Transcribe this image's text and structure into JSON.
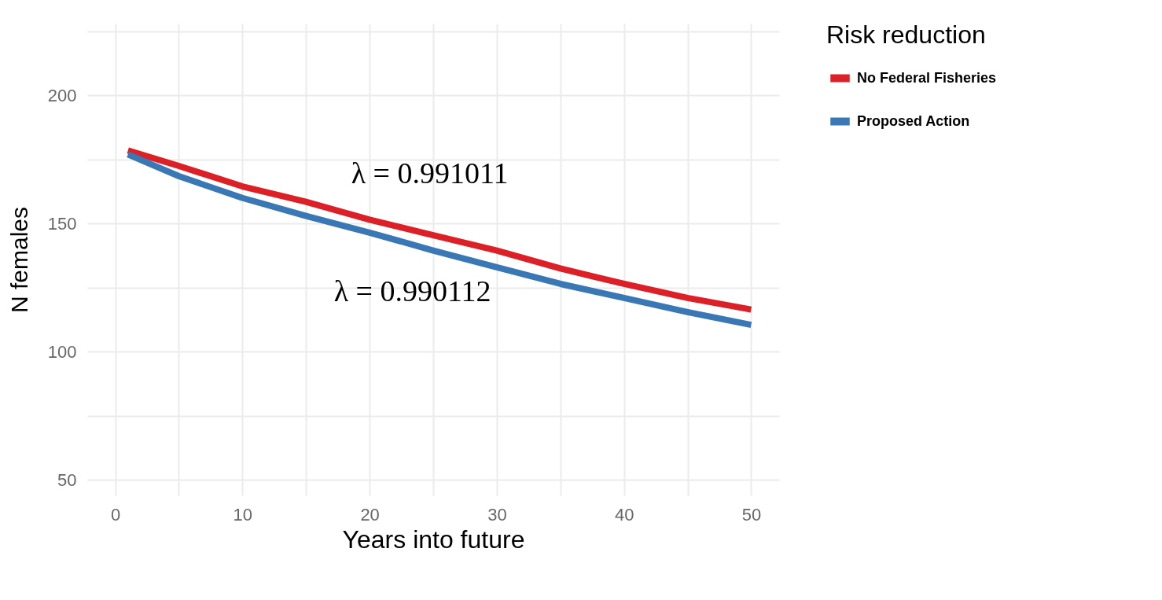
{
  "chart_data": {
    "type": "line",
    "xlabel": "Years into future",
    "ylabel": "N females",
    "legend_title": "Risk reduction",
    "x": [
      1,
      5,
      10,
      15,
      20,
      25,
      30,
      35,
      40,
      45,
      50
    ],
    "series": [
      {
        "name": "No Federal Fisheries",
        "color": "#dc2027",
        "values": [
          178.5,
          172.5,
          164.5,
          158.5,
          151.5,
          145.5,
          139.5,
          132.5,
          126.5,
          121,
          116.5
        ]
      },
      {
        "name": "Proposed Action",
        "color": "#3a78b5",
        "values": [
          177,
          168.5,
          160,
          153,
          146.5,
          139.5,
          133,
          126.5,
          121,
          115.5,
          110.5
        ]
      }
    ],
    "xlim": [
      -2.2,
      52.2
    ],
    "ylim": [
      44,
      228
    ],
    "xticks": [
      0,
      {
        "value": 5,
        "label": null
      },
      10,
      {
        "value": 15,
        "label": null
      },
      20,
      {
        "value": 25,
        "label": null
      },
      30,
      {
        "value": 35,
        "label": null
      },
      40,
      {
        "value": 45,
        "label": null
      },
      50
    ],
    "yticks": [
      50,
      {
        "value": 75,
        "label": null
      },
      100,
      {
        "value": 125,
        "label": null
      },
      150,
      {
        "value": 175,
        "label": null
      },
      200,
      {
        "value": 225,
        "label": null
      }
    ],
    "annotations": [
      "λ = 0.991011",
      "λ = 0.990112"
    ],
    "grid": true,
    "legend": "right",
    "line_style": "solid",
    "marker": "none"
  }
}
